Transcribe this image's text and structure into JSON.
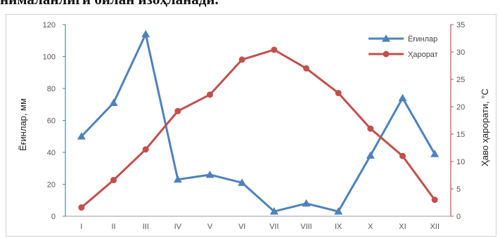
{
  "heading": "нималанлиги билан изоҳланади.",
  "chart_data": {
    "type": "line",
    "categories": [
      "I",
      "II",
      "III",
      "IV",
      "V",
      "VI",
      "VII",
      "VIII",
      "IX",
      "X",
      "XI",
      "XII"
    ],
    "series": [
      {
        "name": "Ёғинлар",
        "axis": "left",
        "color": "#4f81bd",
        "marker": "triangle",
        "values": [
          50,
          71,
          114,
          23,
          26,
          21,
          3,
          8,
          3,
          38,
          74,
          39
        ]
      },
      {
        "name": "Ҳарорат",
        "axis": "right",
        "color": "#c0504d",
        "marker": "circle",
        "values": [
          1.6,
          6.6,
          12.2,
          19.2,
          22.2,
          28.6,
          30.4,
          27.0,
          22.5,
          16.0,
          11.0,
          3.0
        ]
      }
    ],
    "ylabel": "Ёғинлар, мм",
    "y2label": "Ҳаво ҳарорати, °С",
    "ylim": [
      0,
      120
    ],
    "yticks": [
      "0",
      "20",
      "40",
      "60",
      "80",
      "100",
      "120"
    ],
    "y2lim": [
      0,
      35
    ],
    "y2ticks": [
      "0",
      "5",
      "10",
      "15",
      "20",
      "25",
      "30",
      "35"
    ],
    "grid": false,
    "legend": "top-right"
  }
}
